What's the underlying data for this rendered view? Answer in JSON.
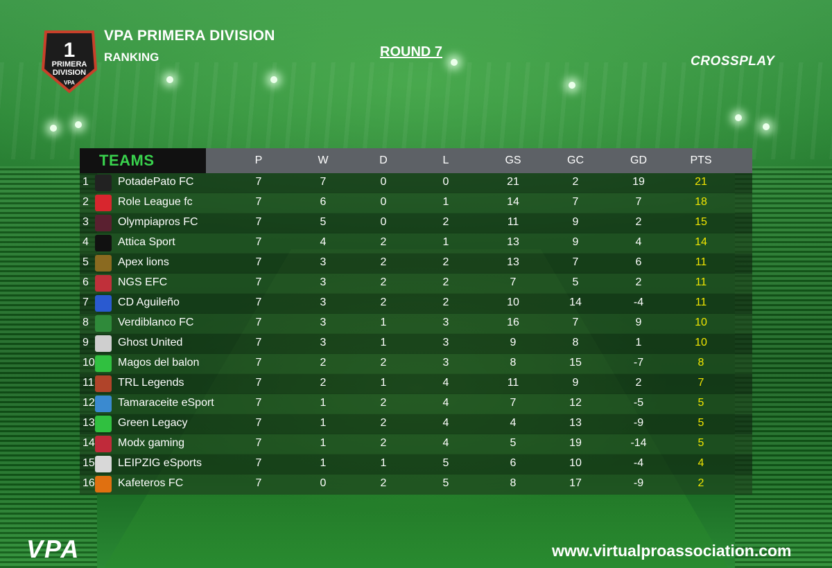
{
  "header": {
    "badge_number": "1",
    "badge_line1": "PRIMERA",
    "badge_line2": "DIVISION",
    "badge_brand": "VPA",
    "title": "VPA PRIMERA DIVISION",
    "subtitle": "RANKING",
    "round": "ROUND 7",
    "crossplay": "CROSSPLAY"
  },
  "table": {
    "teams_label": "TEAMS",
    "columns": [
      "P",
      "W",
      "D",
      "L",
      "GS",
      "GC",
      "GD",
      "PTS"
    ],
    "rows": [
      {
        "pos": "1",
        "team": "PotadePato FC",
        "p": "7",
        "w": "7",
        "d": "0",
        "l": "0",
        "gs": "21",
        "gc": "2",
        "gd": "19",
        "pts": "21",
        "logo_color": "#222222"
      },
      {
        "pos": "2",
        "team": "Role League fc",
        "p": "7",
        "w": "6",
        "d": "0",
        "l": "1",
        "gs": "14",
        "gc": "7",
        "gd": "7",
        "pts": "18",
        "logo_color": "#d8262e"
      },
      {
        "pos": "3",
        "team": "Olympiapros FC",
        "p": "7",
        "w": "5",
        "d": "0",
        "l": "2",
        "gs": "11",
        "gc": "9",
        "gd": "2",
        "pts": "15",
        "logo_color": "#5a2030"
      },
      {
        "pos": "4",
        "team": "Attica Sport",
        "p": "7",
        "w": "4",
        "d": "2",
        "l": "1",
        "gs": "13",
        "gc": "9",
        "gd": "4",
        "pts": "14",
        "logo_color": "#111111"
      },
      {
        "pos": "5",
        "team": "Apex lions",
        "p": "7",
        "w": "3",
        "d": "2",
        "l": "2",
        "gs": "13",
        "gc": "7",
        "gd": "6",
        "pts": "11",
        "logo_color": "#8a6a20"
      },
      {
        "pos": "6",
        "team": "NGS EFC",
        "p": "7",
        "w": "3",
        "d": "2",
        "l": "2",
        "gs": "7",
        "gc": "5",
        "gd": "2",
        "pts": "11",
        "logo_color": "#c0303a"
      },
      {
        "pos": "7",
        "team": "CD Aguileño",
        "p": "7",
        "w": "3",
        "d": "2",
        "l": "2",
        "gs": "10",
        "gc": "14",
        "gd": "-4",
        "pts": "11",
        "logo_color": "#2a5ad0"
      },
      {
        "pos": "8",
        "team": "Verdiblanco FC",
        "p": "7",
        "w": "3",
        "d": "1",
        "l": "3",
        "gs": "16",
        "gc": "7",
        "gd": "9",
        "pts": "10",
        "logo_color": "#2f8a3a"
      },
      {
        "pos": "9",
        "team": "Ghost United",
        "p": "7",
        "w": "3",
        "d": "1",
        "l": "3",
        "gs": "9",
        "gc": "8",
        "gd": "1",
        "pts": "10",
        "logo_color": "#cfcfcf"
      },
      {
        "pos": "10",
        "team": "Magos del balon",
        "p": "7",
        "w": "2",
        "d": "2",
        "l": "3",
        "gs": "8",
        "gc": "15",
        "gd": "-7",
        "pts": "8",
        "logo_color": "#30c040"
      },
      {
        "pos": "11",
        "team": "TRL Legends",
        "p": "7",
        "w": "2",
        "d": "1",
        "l": "4",
        "gs": "11",
        "gc": "9",
        "gd": "2",
        "pts": "7",
        "logo_color": "#b0442a"
      },
      {
        "pos": "12",
        "team": "Tamaraceite eSport",
        "p": "7",
        "w": "1",
        "d": "2",
        "l": "4",
        "gs": "7",
        "gc": "12",
        "gd": "-5",
        "pts": "5",
        "logo_color": "#3a8ad0"
      },
      {
        "pos": "13",
        "team": "Green Legacy",
        "p": "7",
        "w": "1",
        "d": "2",
        "l": "4",
        "gs": "4",
        "gc": "13",
        "gd": "-9",
        "pts": "5",
        "logo_color": "#30c040"
      },
      {
        "pos": "14",
        "team": "Modx gaming",
        "p": "7",
        "w": "1",
        "d": "2",
        "l": "4",
        "gs": "5",
        "gc": "19",
        "gd": "-14",
        "pts": "5",
        "logo_color": "#c02a3a"
      },
      {
        "pos": "15",
        "team": "LEIPZIG eSports",
        "p": "7",
        "w": "1",
        "d": "1",
        "l": "5",
        "gs": "6",
        "gc": "10",
        "gd": "-4",
        "pts": "4",
        "logo_color": "#d8d8d8"
      },
      {
        "pos": "16",
        "team": "Kafeteros FC",
        "p": "7",
        "w": "0",
        "d": "2",
        "l": "5",
        "gs": "8",
        "gc": "17",
        "gd": "-9",
        "pts": "2",
        "logo_color": "#e07010"
      }
    ]
  },
  "footer": {
    "brand": "VPA",
    "website": "www.virtualproassociation.com"
  },
  "colors": {
    "accent_green": "#39d24d",
    "points_yellow": "#f2e600",
    "header_bar": "#5d6166"
  }
}
